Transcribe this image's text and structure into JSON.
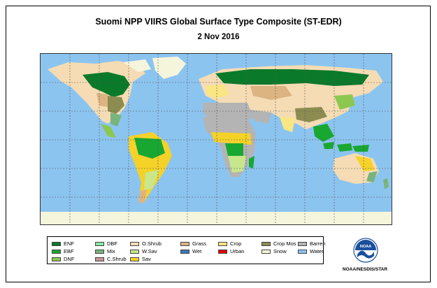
{
  "title": "Suomi NPP VIIRS Global Surface Type Composite (ST-EDR)",
  "subtitle": "2 Nov 2016",
  "legend": [
    {
      "label": "ENF",
      "color": "#0a7a2a",
      "name": "legend-enf"
    },
    {
      "label": "EBF",
      "color": "#18a832",
      "name": "legend-ebf"
    },
    {
      "label": "DNF",
      "color": "#8cc850",
      "name": "legend-dnf"
    },
    {
      "label": "DBF",
      "color": "#8ce6a8",
      "name": "legend-dbf"
    },
    {
      "label": "Mix",
      "color": "#78b47c",
      "name": "legend-mix"
    },
    {
      "label": "C.Shrub",
      "color": "#c89696",
      "name": "legend-cshrub"
    },
    {
      "label": "O.Shrub",
      "color": "#f5dcb4",
      "name": "legend-oshrub"
    },
    {
      "label": "W.Sav",
      "color": "#c8e68c",
      "name": "legend-wsav"
    },
    {
      "label": "Sav",
      "color": "#f5d228",
      "name": "legend-sav"
    },
    {
      "label": "Grass",
      "color": "#dcb482",
      "name": "legend-grass"
    },
    {
      "label": "Wet",
      "color": "#3c78b4",
      "name": "legend-wet"
    },
    {
      "label": "Crop",
      "color": "#fae682",
      "name": "legend-crop"
    },
    {
      "label": "Urban",
      "color": "#e60000",
      "name": "legend-urban"
    },
    {
      "label": "Crop Mos",
      "color": "#8c8c50",
      "name": "legend-crop-mos"
    },
    {
      "label": "Snow",
      "color": "#f5f5dc",
      "name": "legend-snow"
    },
    {
      "label": "Barren",
      "color": "#b4b4b4",
      "name": "legend-barren"
    },
    {
      "label": "Water",
      "color": "#8cc4f0",
      "name": "legend-water"
    }
  ],
  "logo": {
    "text": "NOAA",
    "icon": "noaa-logo-icon"
  },
  "credit": "NOAA/NESDIS/STAR"
}
